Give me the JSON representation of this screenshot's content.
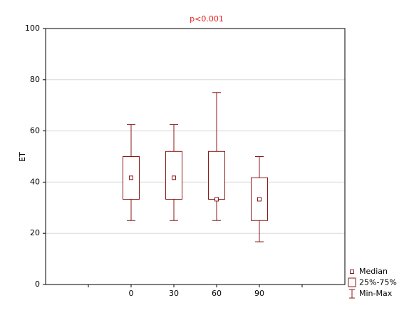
{
  "chart_data": {
    "type": "box",
    "title": "p<0.001",
    "title_color": "#e8201c",
    "y_label": "ET",
    "categories": [
      null,
      "0",
      "30",
      "60",
      "90",
      null
    ],
    "min": [
      null,
      25,
      25,
      25,
      16.7,
      null
    ],
    "q1": [
      null,
      33.3,
      33.3,
      33.3,
      25,
      null
    ],
    "median": [
      null,
      41.7,
      41.7,
      33.3,
      33.3,
      null
    ],
    "q3": [
      null,
      50,
      52,
      52,
      41.7,
      null
    ],
    "max": [
      null,
      62.5,
      62.5,
      75,
      50,
      null
    ],
    "color": "#8b1a1a",
    "ylim": [
      0,
      100
    ],
    "yticks": [
      0,
      20,
      40,
      60,
      80,
      100
    ],
    "grid": true,
    "legend": [
      "Median",
      "25%-75%",
      "Min-Max"
    ],
    "legend_position": "bottom-right"
  }
}
